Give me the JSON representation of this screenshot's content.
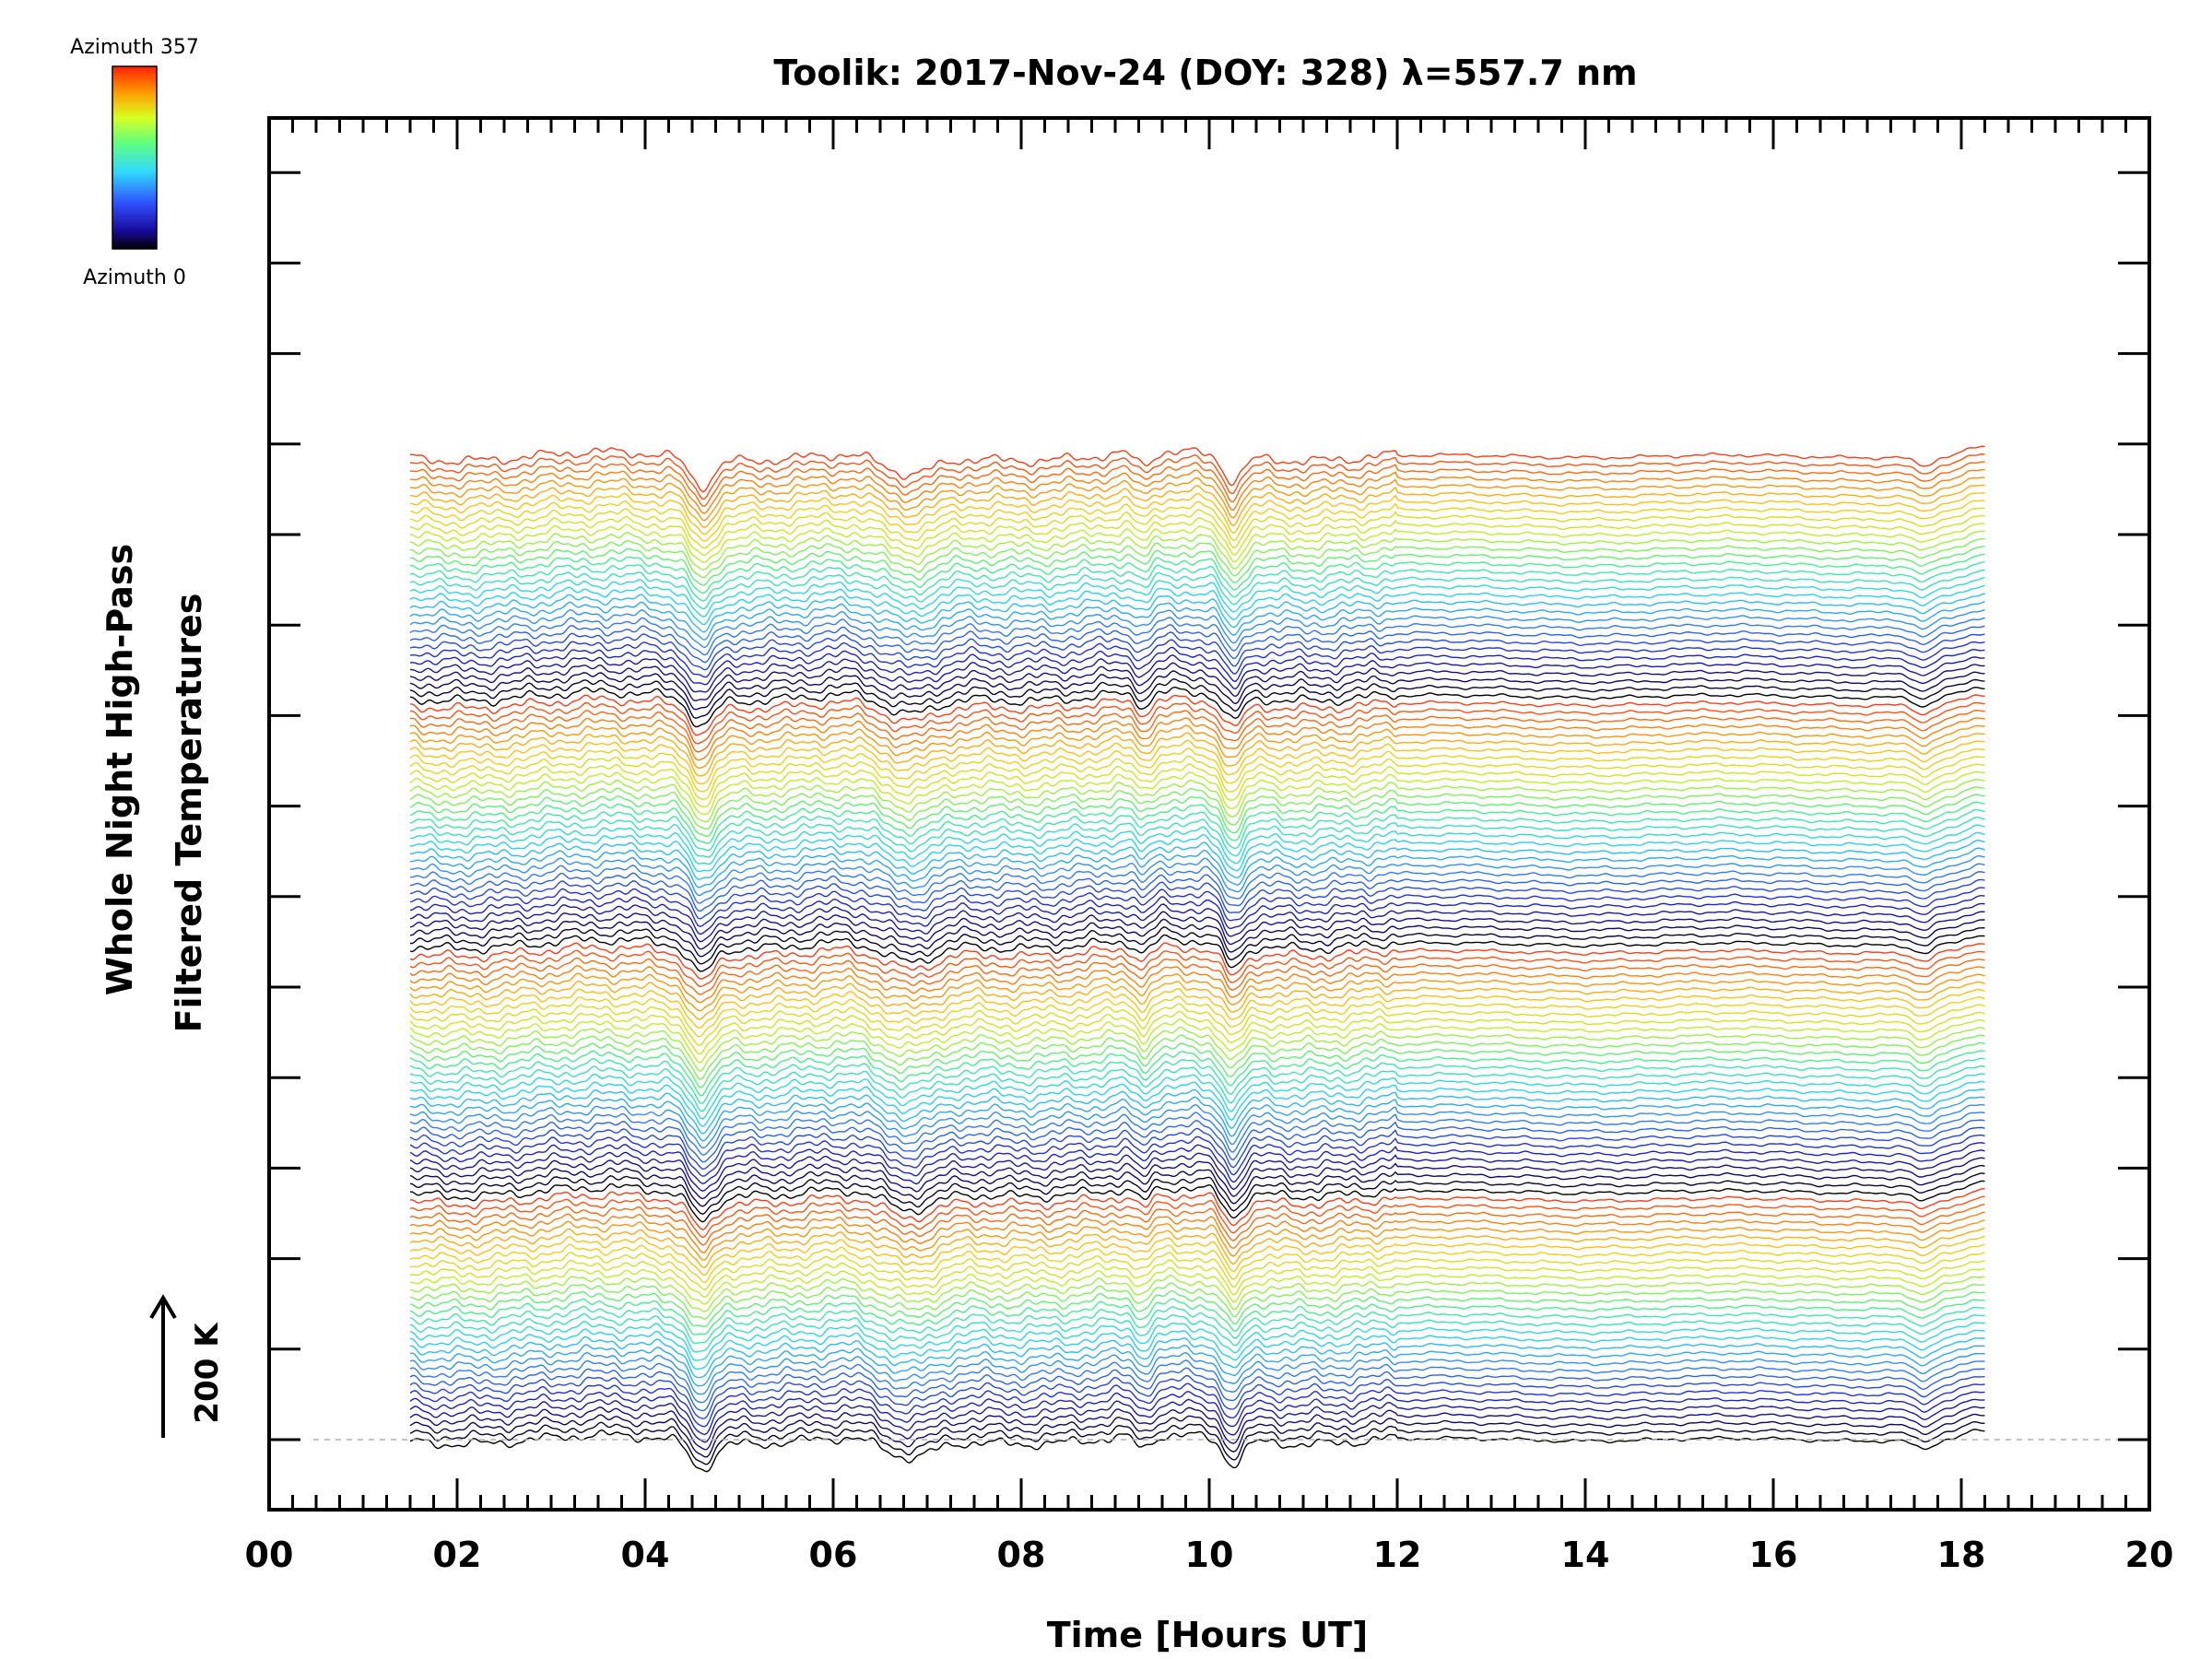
{
  "chart_data": {
    "type": "line",
    "title": "Toolik: 2017-Nov-24 (DOY: 328) λ=557.7 nm",
    "xlabel": "Time [Hours UT]",
    "ylabel_line1": "Whole Night High-Pass",
    "ylabel_line2": "Filtered Temperatures",
    "x_range": [
      0,
      20
    ],
    "x_ticks": [
      "00",
      "02",
      "04",
      "06",
      "08",
      "10",
      "12",
      "14",
      "16",
      "18",
      "20"
    ],
    "data_time_range": [
      1.5,
      18.25
    ],
    "n_traces": 128,
    "trace_offset_K": 17.2,
    "azimuth_cycle": 32,
    "scale_bar": {
      "label": "200 K",
      "value_K": 200
    },
    "colorbar": {
      "label_top": "Azimuth 357",
      "label_bottom": "Azimuth 0",
      "min_deg": 0,
      "max_deg": 357
    },
    "events": [
      {
        "time": 4.6,
        "depth_K": 60,
        "width": 0.12
      },
      {
        "time": 6.8,
        "depth_K": 48,
        "width": 0.28
      },
      {
        "time": 9.3,
        "depth_K": 28,
        "width": 0.08
      },
      {
        "time": 10.25,
        "depth_K": 55,
        "width": 0.1
      },
      {
        "time": 17.6,
        "depth_K": 20,
        "width": 0.1
      }
    ],
    "colors": {
      "baseline": "#b0b0b0",
      "axis": "#000000"
    }
  }
}
